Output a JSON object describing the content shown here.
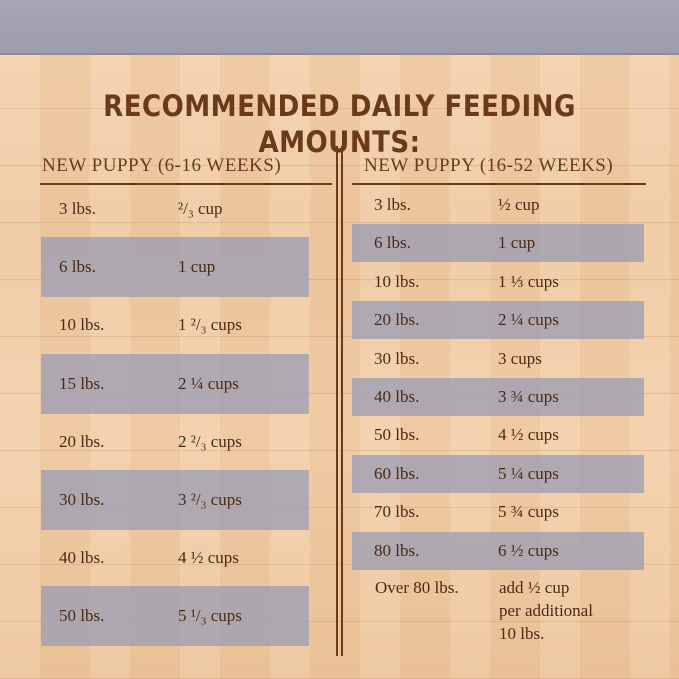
{
  "title": "RECOMMENDED DAILY FEEDING AMOUNTS:",
  "columns": [
    {
      "heading": "NEW PUPPY (6-16 WEEKS)",
      "rows": [
        {
          "weight": "3 lbs.",
          "amount": "²/₃ cup",
          "shaded": false
        },
        {
          "weight": "6 lbs.",
          "amount": "1 cup",
          "shaded": true
        },
        {
          "weight": "10 lbs.",
          "amount": "1 ²/₃ cups",
          "shaded": false
        },
        {
          "weight": "15 lbs.",
          "amount": "2 ¼ cups",
          "shaded": true
        },
        {
          "weight": "20 lbs.",
          "amount": "2 ²/₃ cups",
          "shaded": false
        },
        {
          "weight": "30 lbs.",
          "amount": "3 ²/₃ cups",
          "shaded": true
        },
        {
          "weight": "40 lbs.",
          "amount": "4 ½ cups",
          "shaded": false
        },
        {
          "weight": "50 lbs.",
          "amount": "5 ¹/₃ cups",
          "shaded": true
        }
      ]
    },
    {
      "heading": "NEW PUPPY (16-52 WEEKS)",
      "rows": [
        {
          "weight": "3 lbs.",
          "amount": "½ cup",
          "shaded": false
        },
        {
          "weight": "6 lbs.",
          "amount": "1 cup",
          "shaded": true
        },
        {
          "weight": "10 lbs.",
          "amount": "1 ⅓ cups",
          "shaded": false
        },
        {
          "weight": "20 lbs.",
          "amount": "2 ¼ cups",
          "shaded": true
        },
        {
          "weight": "30 lbs.",
          "amount": "3 cups",
          "shaded": false
        },
        {
          "weight": "40 lbs.",
          "amount": "3 ¾ cups",
          "shaded": true
        },
        {
          "weight": "50 lbs.",
          "amount": "4 ½ cups",
          "shaded": false
        },
        {
          "weight": "60 lbs.",
          "amount": "5 ¼ cups",
          "shaded": true
        },
        {
          "weight": "70 lbs.",
          "amount": "5 ¾ cups",
          "shaded": false
        },
        {
          "weight": "80 lbs.",
          "amount": "6 ½ cups",
          "shaded": true
        }
      ],
      "last_row": {
        "weight": "Over 80 lbs.",
        "amount_lines": [
          "add ½ cup",
          "per additional",
          "10 lbs."
        ]
      }
    }
  ],
  "colors": {
    "brown_text": "#6b3a1a",
    "shade": "#a0a0b2",
    "top_band": "#a9a7b6"
  }
}
